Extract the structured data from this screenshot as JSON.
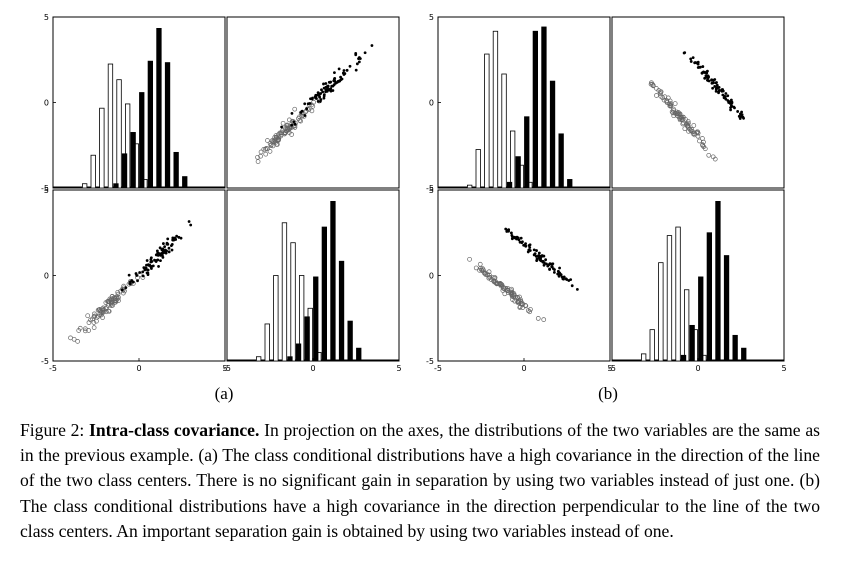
{
  "figure": {
    "axis": {
      "min": -5,
      "max": 5,
      "tick_labels": [
        "-5",
        "0",
        "5"
      ]
    },
    "panels": [
      {
        "id": "a",
        "label": "(a)",
        "hist_x": {
          "open": [
            [
              -3,
              0.3
            ],
            [
              -2.5,
              2.3
            ],
            [
              -2,
              5.6
            ],
            [
              -1.5,
              8.7
            ],
            [
              -1,
              7.6
            ],
            [
              -0.5,
              5.9
            ],
            [
              0,
              3.1
            ],
            [
              0.5,
              0.6
            ]
          ],
          "filled": [
            [
              -1.5,
              0.3
            ],
            [
              -1,
              2.4
            ],
            [
              -0.5,
              3.9
            ],
            [
              0,
              6.7
            ],
            [
              0.5,
              8.9
            ],
            [
              1,
              11.2
            ],
            [
              1.5,
              8.8
            ],
            [
              2,
              2.5
            ],
            [
              2.5,
              0.8
            ]
          ]
        },
        "hist_y": {
          "open": [
            [
              -3,
              0.3
            ],
            [
              -2.5,
              2.6
            ],
            [
              -2,
              6.0
            ],
            [
              -1.5,
              9.7
            ],
            [
              -1,
              8.3
            ],
            [
              -0.5,
              6.0
            ],
            [
              0,
              3.7
            ],
            [
              0.5,
              0.6
            ]
          ],
          "filled": [
            [
              -1.5,
              0.3
            ],
            [
              -1,
              1.2
            ],
            [
              -0.5,
              3.1
            ],
            [
              0,
              5.9
            ],
            [
              0.5,
              9.4
            ],
            [
              1,
              11.2
            ],
            [
              1.5,
              7.0
            ],
            [
              2,
              2.8
            ],
            [
              2.5,
              0.9
            ]
          ]
        },
        "scatter": {
          "open_line": [
            [
              -3.8,
              -3.8
            ],
            [
              0.3,
              0.2
            ]
          ],
          "filled_line": [
            [
              -1.3,
              -1.3
            ],
            [
              3.3,
              3.3
            ]
          ],
          "spread": 0.15
        }
      },
      {
        "id": "b",
        "label": "(b)",
        "hist_x": {
          "open": [
            [
              -3,
              0.2
            ],
            [
              -2.5,
              2.7
            ],
            [
              -2,
              9.4
            ],
            [
              -1.5,
              11.0
            ],
            [
              -1,
              8.0
            ],
            [
              -0.5,
              4.0
            ],
            [
              0,
              1.6
            ],
            [
              0.5,
              0.4
            ]
          ],
          "filled": [
            [
              -1,
              0.4
            ],
            [
              -0.5,
              2.2
            ],
            [
              0,
              5.0
            ],
            [
              0.5,
              11.0
            ],
            [
              1,
              11.3
            ],
            [
              1.5,
              7.5
            ],
            [
              2,
              3.8
            ],
            [
              2.5,
              0.6
            ]
          ]
        },
        "hist_y": {
          "open": [
            [
              -3,
              0.5
            ],
            [
              -2.5,
              2.2
            ],
            [
              -2,
              6.9
            ],
            [
              -1.5,
              8.8
            ],
            [
              -1,
              9.4
            ],
            [
              -0.5,
              5.0
            ],
            [
              0,
              2.2
            ],
            [
              0.5,
              0.4
            ]
          ],
          "filled": [
            [
              -1,
              0.4
            ],
            [
              -0.5,
              2.5
            ],
            [
              0,
              5.9
            ],
            [
              0.5,
              9.0
            ],
            [
              1,
              11.2
            ],
            [
              1.5,
              7.4
            ],
            [
              2,
              1.8
            ],
            [
              2.5,
              0.9
            ]
          ]
        },
        "scatter": {
          "open_line": [
            [
              -2.7,
              1.1
            ],
            [
              1.0,
              -3.2
            ]
          ],
          "filled_line": [
            [
              -0.7,
              3.0
            ],
            [
              2.7,
              -1.0
            ]
          ],
          "spread": 0.1
        }
      }
    ]
  },
  "caption": {
    "prefix": "Figure 2: ",
    "title": "Intra-class covariance.",
    "body": " In projection on the axes, the distributions of the two variables are the same as in the previous example. (a) The class conditional distributions have a high covariance in the direction of the line of the two class centers. There is no significant gain in separation by using two variables instead of just one. (b) The class conditional distributions have a high covariance in the direction perpendicular to the line of the two class centers. An important separation gain is obtained by using two variables instead of one."
  }
}
